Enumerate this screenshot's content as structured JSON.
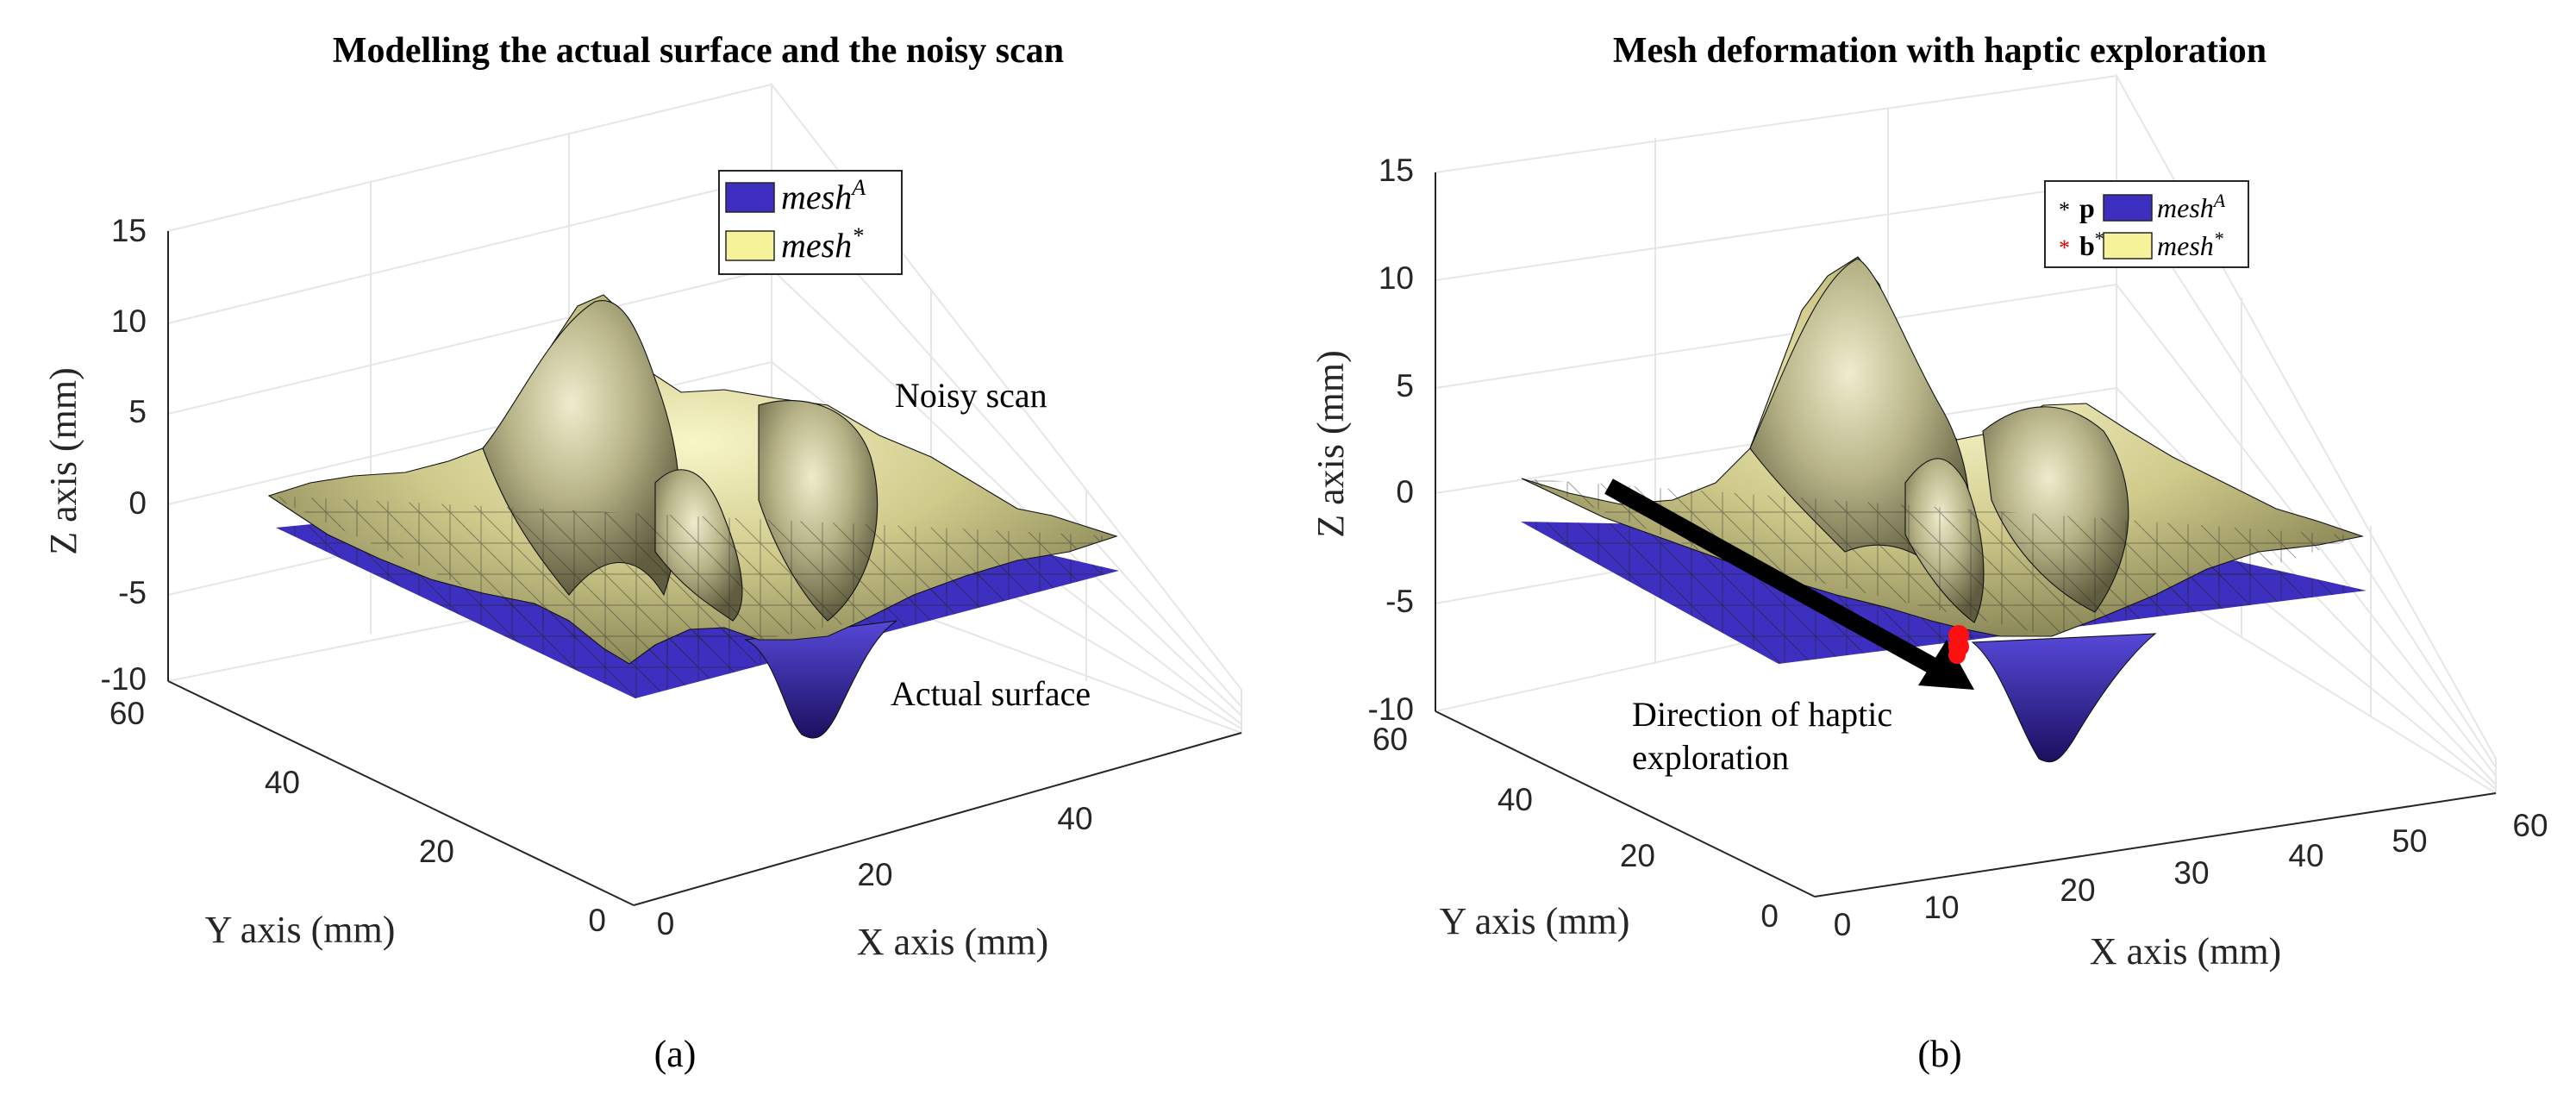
{
  "chart_data": [
    {
      "type": "surface3d",
      "title": "Modelling the actual surface and the noisy scan",
      "caption": "(a)",
      "xlabel": "X axis (mm)",
      "ylabel": "Y axis (mm)",
      "zlabel": "Z axis (mm)",
      "xticks": [
        "0",
        "20",
        "40"
      ],
      "yticks": [
        "0",
        "20",
        "40",
        "60"
      ],
      "zticks": [
        "15",
        "10",
        "5",
        "0",
        "-5",
        "-10"
      ],
      "xlim": [
        0,
        60
      ],
      "ylim": [
        0,
        60
      ],
      "zlim": [
        -10,
        15
      ],
      "legend": [
        {
          "label": "mesh",
          "sup": "A",
          "color": "#3d2fc0"
        },
        {
          "label": "mesh",
          "sup": "*",
          "color": "#f6f29a"
        }
      ],
      "annotations": [
        "Noisy scan",
        "Actual surface"
      ],
      "series": [
        {
          "name": "mesh^A",
          "description": "flat plane near z=-4 with a single dip to about -10"
        },
        {
          "name": "mesh*",
          "description": "noisy scan with peaks up to about 12 mm"
        }
      ]
    },
    {
      "type": "surface3d",
      "title": "Mesh deformation with haptic exploration",
      "caption": "(b)",
      "xlabel": "X axis (mm)",
      "ylabel": "Y axis (mm)",
      "zlabel": "Z axis (mm)",
      "xticks": [
        "0",
        "10",
        "20",
        "30",
        "40",
        "50",
        "60"
      ],
      "yticks": [
        "0",
        "20",
        "40",
        "60"
      ],
      "zticks": [
        "15",
        "10",
        "5",
        "0",
        "-5",
        "-10"
      ],
      "xlim": [
        0,
        60
      ],
      "ylim": [
        0,
        60
      ],
      "zlim": [
        -10,
        15
      ],
      "legend": [
        {
          "label": "p",
          "marker": "*",
          "color": "#000000"
        },
        {
          "label": "b",
          "sup": "*",
          "marker": "*",
          "color": "#e00000"
        },
        {
          "label": "mesh",
          "sup": "A",
          "color": "#3d2fc0"
        },
        {
          "label": "mesh",
          "sup": "*",
          "color": "#f6f29a"
        }
      ],
      "annotations": [
        "Direction of haptic",
        "exploration"
      ],
      "series": [
        {
          "name": "mesh^A",
          "description": "flat plane near z=-4 with a single dip to about -10"
        },
        {
          "name": "mesh*",
          "description": "deformed scan with peaks up to about 11 mm"
        }
      ]
    }
  ]
}
